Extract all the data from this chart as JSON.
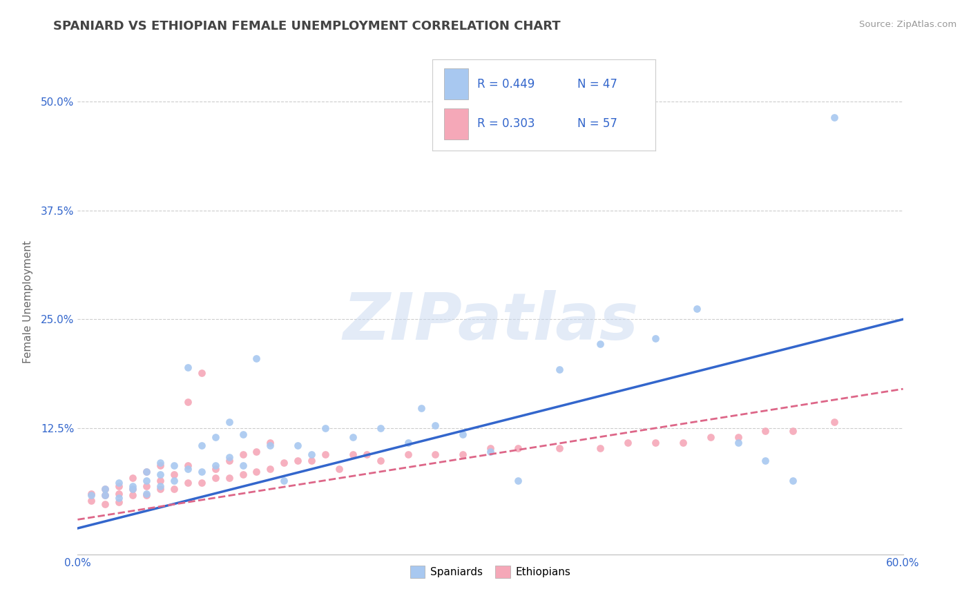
{
  "title": "SPANIARD VS ETHIOPIAN FEMALE UNEMPLOYMENT CORRELATION CHART",
  "source": "Source: ZipAtlas.com",
  "ylabel": "Female Unemployment",
  "xlim": [
    0.0,
    0.6
  ],
  "ylim": [
    -0.02,
    0.56
  ],
  "xticks": [
    0.0,
    0.1,
    0.2,
    0.3,
    0.4,
    0.5,
    0.6
  ],
  "xticklabels": [
    "0.0%",
    "",
    "",
    "",
    "",
    "",
    "60.0%"
  ],
  "yticks": [
    0.125,
    0.25,
    0.375,
    0.5
  ],
  "yticklabels": [
    "12.5%",
    "25.0%",
    "37.5%",
    "50.0%"
  ],
  "grid_color": "#cccccc",
  "spaniards_color": "#a8c8f0",
  "ethiopians_color": "#f5a8b8",
  "spaniard_line_color": "#3366cc",
  "ethiopian_line_color": "#dd6688",
  "watermark": "ZIPatlas",
  "watermark_zip_color": "#c8d8f0",
  "watermark_atlas_color": "#c8d8f0",
  "legend_label_spaniard": "Spaniards",
  "legend_label_ethiopian": "Ethiopians",
  "background_color": "#ffffff",
  "title_color": "#444444",
  "axis_label_color": "#666666",
  "tick_label_color": "#3366cc",
  "R_spaniard": 0.449,
  "N_spaniard": 47,
  "R_ethiopian": 0.303,
  "N_ethiopian": 57,
  "spaniard_line_x0": 0.0,
  "spaniard_line_y0": 0.01,
  "spaniard_line_x1": 0.6,
  "spaniard_line_y1": 0.25,
  "ethiopian_line_x0": 0.0,
  "ethiopian_line_y0": 0.02,
  "ethiopian_line_x1": 0.6,
  "ethiopian_line_y1": 0.17,
  "spaniards_x": [
    0.01,
    0.02,
    0.02,
    0.03,
    0.03,
    0.04,
    0.04,
    0.05,
    0.05,
    0.05,
    0.06,
    0.06,
    0.06,
    0.07,
    0.07,
    0.08,
    0.08,
    0.09,
    0.09,
    0.1,
    0.1,
    0.11,
    0.11,
    0.12,
    0.12,
    0.13,
    0.14,
    0.15,
    0.16,
    0.17,
    0.18,
    0.2,
    0.22,
    0.24,
    0.25,
    0.26,
    0.28,
    0.3,
    0.32,
    0.35,
    0.38,
    0.42,
    0.45,
    0.48,
    0.5,
    0.52,
    0.55
  ],
  "spaniards_y": [
    0.048,
    0.048,
    0.055,
    0.045,
    0.062,
    0.055,
    0.058,
    0.05,
    0.065,
    0.075,
    0.058,
    0.072,
    0.085,
    0.065,
    0.082,
    0.078,
    0.195,
    0.075,
    0.105,
    0.082,
    0.115,
    0.092,
    0.132,
    0.082,
    0.118,
    0.205,
    0.105,
    0.065,
    0.105,
    0.095,
    0.125,
    0.115,
    0.125,
    0.108,
    0.148,
    0.128,
    0.118,
    0.098,
    0.065,
    0.192,
    0.222,
    0.228,
    0.262,
    0.108,
    0.088,
    0.065,
    0.482
  ],
  "ethiopians_x": [
    0.01,
    0.01,
    0.02,
    0.02,
    0.02,
    0.03,
    0.03,
    0.03,
    0.04,
    0.04,
    0.04,
    0.05,
    0.05,
    0.05,
    0.06,
    0.06,
    0.06,
    0.07,
    0.07,
    0.08,
    0.08,
    0.08,
    0.09,
    0.09,
    0.1,
    0.1,
    0.11,
    0.11,
    0.12,
    0.12,
    0.13,
    0.13,
    0.14,
    0.14,
    0.15,
    0.16,
    0.17,
    0.18,
    0.19,
    0.2,
    0.21,
    0.22,
    0.24,
    0.26,
    0.28,
    0.3,
    0.32,
    0.35,
    0.38,
    0.4,
    0.42,
    0.44,
    0.46,
    0.48,
    0.5,
    0.52,
    0.55
  ],
  "ethiopians_y": [
    0.042,
    0.05,
    0.038,
    0.048,
    0.055,
    0.04,
    0.05,
    0.058,
    0.048,
    0.055,
    0.068,
    0.048,
    0.058,
    0.075,
    0.055,
    0.065,
    0.082,
    0.055,
    0.072,
    0.062,
    0.082,
    0.155,
    0.062,
    0.188,
    0.068,
    0.078,
    0.068,
    0.088,
    0.072,
    0.095,
    0.075,
    0.098,
    0.078,
    0.108,
    0.085,
    0.088,
    0.088,
    0.095,
    0.078,
    0.095,
    0.095,
    0.088,
    0.095,
    0.095,
    0.095,
    0.102,
    0.102,
    0.102,
    0.102,
    0.108,
    0.108,
    0.108,
    0.115,
    0.115,
    0.122,
    0.122,
    0.132
  ]
}
